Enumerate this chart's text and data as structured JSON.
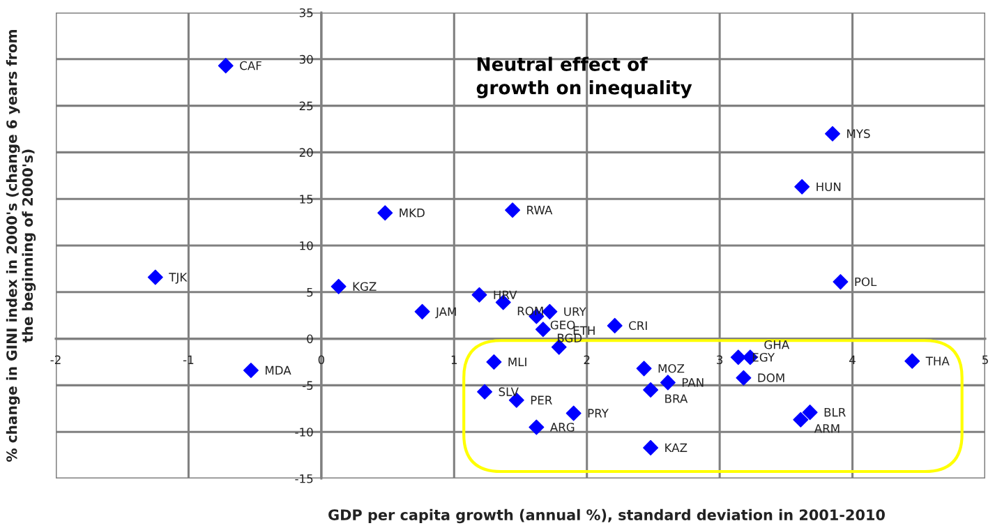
{
  "chart_data": {
    "type": "scatter",
    "xlabel": "GDP per capita growth (annual %), standard deviation in 2001-2010",
    "ylabel": "% change in GINI index in 2000's (change 6 years from\nthe beginning of 2000's)",
    "xlim": [
      -2,
      5
    ],
    "ylim": [
      -15,
      35
    ],
    "xticks": [
      -2,
      -1,
      0,
      1,
      2,
      3,
      4,
      5
    ],
    "yticks": [
      -15,
      -10,
      -5,
      0,
      5,
      10,
      15,
      20,
      25,
      30,
      35
    ],
    "grid": true,
    "marker": "diamond",
    "legend": false,
    "series": [
      {
        "color": "#0000ff",
        "x": [
          -0.72,
          3.85,
          3.62,
          0.48,
          1.44,
          -1.25,
          0.13,
          3.91,
          1.19,
          1.37,
          0.76,
          1.72,
          1.62,
          1.67,
          2.21,
          1.79,
          1.3,
          -0.53,
          3.14,
          3.23,
          2.43,
          4.45,
          3.18,
          2.61,
          2.48,
          1.23,
          1.47,
          1.9,
          3.68,
          3.61,
          1.62,
          2.48
        ],
        "values": [
          29.3,
          22.0,
          16.3,
          13.5,
          13.8,
          6.6,
          5.6,
          6.1,
          4.7,
          3.9,
          2.9,
          2.9,
          2.4,
          1.0,
          1.4,
          -0.9,
          -2.5,
          -3.4,
          -2.0,
          -2.0,
          -3.2,
          -2.4,
          -4.2,
          -4.7,
          -5.5,
          -5.7,
          -6.6,
          -8.0,
          -7.9,
          -8.7,
          -9.5,
          -11.7
        ]
      }
    ],
    "annotations": [
      "Neutral effect of\ngrowth on inequality",
      {
        "text": "CAF",
        "x": -0.72,
        "y": 29.3
      },
      {
        "text": "MYS",
        "x": 3.85,
        "y": 22.0
      },
      {
        "text": "HUN",
        "x": 3.62,
        "y": 16.3
      },
      {
        "text": "MKD",
        "x": 0.48,
        "y": 13.5
      },
      {
        "text": "RWA",
        "x": 1.44,
        "y": 13.8
      },
      {
        "text": "TJK",
        "x": -1.25,
        "y": 6.6
      },
      {
        "text": "KGZ",
        "x": 0.13,
        "y": 5.6
      },
      {
        "text": "POL",
        "x": 3.91,
        "y": 6.1
      },
      {
        "text": "HRV",
        "x": 1.19,
        "y": 4.7
      },
      {
        "text": "ROM",
        "x": 1.37,
        "y": 3.9
      },
      {
        "text": "JAM",
        "x": 0.76,
        "y": 2.9
      },
      {
        "text": "URY",
        "x": 1.72,
        "y": 2.9
      },
      {
        "text": "GEO",
        "x": 1.62,
        "y": 2.4
      },
      {
        "text": "BGD",
        "x": 1.67,
        "y": 1.0
      },
      {
        "text": "CRI",
        "x": 2.21,
        "y": 1.4
      },
      {
        "text": "ETH",
        "x": 1.79,
        "y": -0.9
      },
      {
        "text": "MLI",
        "x": 1.3,
        "y": -2.5
      },
      {
        "text": "MDA",
        "x": -0.53,
        "y": -3.4
      },
      {
        "text": "EGY",
        "x": 3.14,
        "y": -2.0
      },
      {
        "text": "GHA",
        "x": 3.23,
        "y": -2.0
      },
      {
        "text": "MOZ",
        "x": 2.43,
        "y": -3.2
      },
      {
        "text": "THA",
        "x": 4.45,
        "y": -2.4
      },
      {
        "text": "DOM",
        "x": 3.18,
        "y": -4.2
      },
      {
        "text": "PAN",
        "x": 2.61,
        "y": -4.7
      },
      {
        "text": "BRA",
        "x": 2.48,
        "y": -5.5
      },
      {
        "text": "SLV",
        "x": 1.23,
        "y": -5.7
      },
      {
        "text": "PER",
        "x": 1.47,
        "y": -6.6
      },
      {
        "text": "PRY",
        "x": 1.9,
        "y": -8.0
      },
      {
        "text": "BLR",
        "x": 3.68,
        "y": -7.9
      },
      {
        "text": "ARM",
        "x": 3.61,
        "y": -8.7
      },
      {
        "text": "ARG",
        "x": 1.62,
        "y": -9.5
      },
      {
        "text": "KAZ",
        "x": 2.48,
        "y": -11.7
      }
    ]
  }
}
